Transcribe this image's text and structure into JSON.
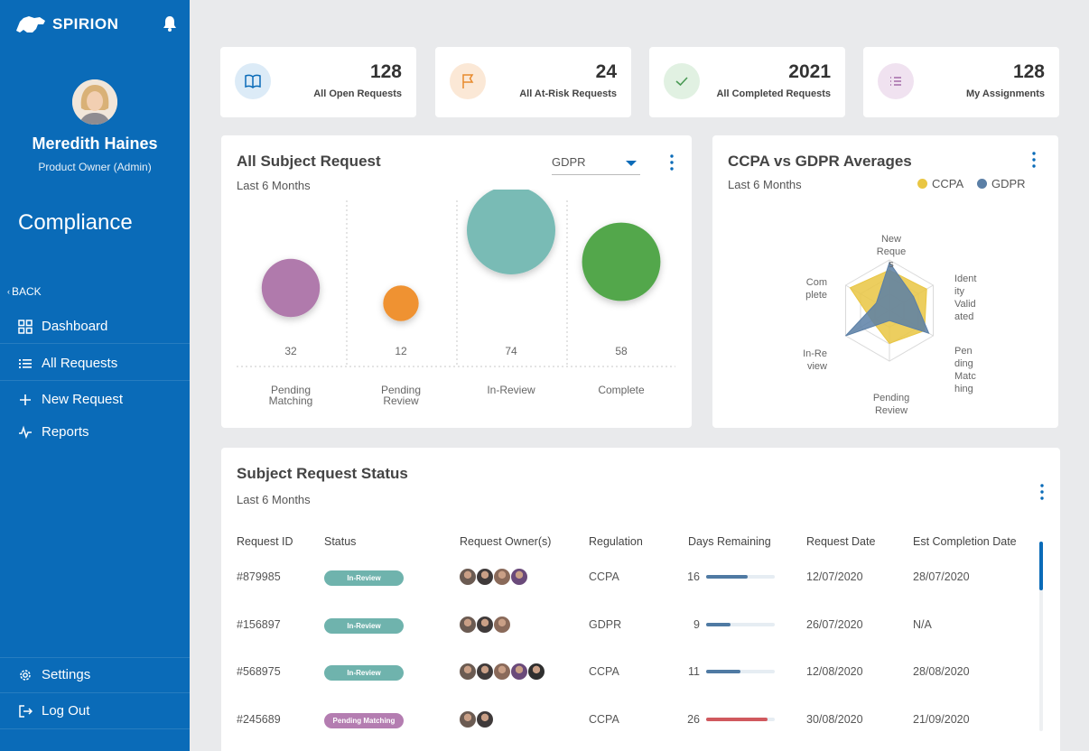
{
  "brand": {
    "name": "SPIRION"
  },
  "user": {
    "name": "Meredith Haines",
    "role": "Product Owner (Admin)"
  },
  "sidebar": {
    "section": "Compliance",
    "back": "BACK",
    "items": [
      {
        "label": "Dashboard",
        "icon": "grid-icon"
      },
      {
        "label": "All Requests",
        "icon": "list-icon"
      },
      {
        "label": "New Request",
        "icon": "plus-icon"
      },
      {
        "label": "Reports",
        "icon": "pulse-icon"
      }
    ],
    "bottom": [
      {
        "label": "Settings",
        "icon": "gear-icon"
      },
      {
        "label": "Log Out",
        "icon": "logout-icon"
      }
    ]
  },
  "stats": [
    {
      "value": "128",
      "label": "All Open Requests",
      "icon": "book-icon",
      "color": "#0a6bb8",
      "bg": "#dcebf7"
    },
    {
      "value": "24",
      "label": "All At-Risk Requests",
      "icon": "flag-icon",
      "color": "#e88a2d",
      "bg": "#fbe8d6"
    },
    {
      "value": "2021",
      "label": "All Completed Requests",
      "icon": "check-icon",
      "color": "#4a9a55",
      "bg": "#e1f1e2"
    },
    {
      "value": "128",
      "label": "My Assignments",
      "icon": "list-icon",
      "color": "#a46aa8",
      "bg": "#f0e2f0"
    }
  ],
  "subject_chart": {
    "title": "All Subject Request",
    "subtitle": "Last 6 Months",
    "filter": "GDPR"
  },
  "radar": {
    "title": "CCPA vs GDPR Averages",
    "subtitle": "Last 6 Months",
    "axis_labels": {
      "new": [
        "New",
        "Reque",
        "s"
      ],
      "identity": [
        "Ident",
        "ity",
        "Valid",
        "ated"
      ],
      "pending_matching": [
        "Pen",
        "ding",
        "Matc",
        "hing"
      ],
      "pending_review": [
        "Pending",
        "Review"
      ],
      "in_review": [
        "In-Re",
        "view"
      ],
      "complete": [
        "Com",
        "plete"
      ]
    }
  },
  "chart_data": [
    {
      "type": "scatter",
      "title": "All Subject Request",
      "subtitle": "Last 6 Months",
      "categories": [
        "Pending Matching",
        "Pending Review",
        "In-Review",
        "Complete"
      ],
      "values": [
        32,
        12,
        74,
        58
      ],
      "colors": [
        "#b07aac",
        "#ef9233",
        "#79bbb5",
        "#52a74c"
      ]
    },
    {
      "type": "radar",
      "title": "CCPA vs GDPR Averages",
      "subtitle": "Last 6 Months",
      "axes": [
        "New Requests",
        "Identity Validated",
        "Pending Matching",
        "Pending Review",
        "In-Review",
        "Complete"
      ],
      "series": [
        {
          "name": "CCPA",
          "color": "#e9c643",
          "values": [
            0.8,
            0.85,
            0.8,
            0.65,
            0.4,
            0.9
          ]
        },
        {
          "name": "GDPR",
          "color": "#5b7fa6",
          "values": [
            0.95,
            0.55,
            0.9,
            0.2,
            1.0,
            0.3
          ]
        }
      ],
      "legend": "top-right"
    }
  ],
  "table": {
    "title": "Subject Request Status",
    "subtitle": "Last 6 Months",
    "headers": [
      "Request ID",
      "Status",
      "Request Owner(s)",
      "Regulation",
      "Days Remaining",
      "Request Date",
      "Est Completion Date"
    ],
    "rows": [
      {
        "id": "#879985",
        "status": "In-Review",
        "status_color": "#6fb3ad",
        "owners": 4,
        "regulation": "CCPA",
        "days": "16",
        "progress": 0.6,
        "bar_color": "#4f7aa3",
        "request_date": "12/07/2020",
        "est": "28/07/2020"
      },
      {
        "id": "#156897",
        "status": "In-Review",
        "status_color": "#6fb3ad",
        "owners": 3,
        "regulation": "GDPR",
        "days": "9",
        "progress": 0.35,
        "bar_color": "#4f7aa3",
        "request_date": "26/07/2020",
        "est": "N/A"
      },
      {
        "id": "#568975",
        "status": "In-Review",
        "status_color": "#6fb3ad",
        "owners": 5,
        "regulation": "CCPA",
        "days": "11",
        "progress": 0.5,
        "bar_color": "#4f7aa3",
        "request_date": "12/08/2020",
        "est": "28/08/2020"
      },
      {
        "id": "#245689",
        "status": "Pending Matching",
        "status_color": "#b47db1",
        "owners": 2,
        "regulation": "CCPA",
        "days": "26",
        "progress": 0.9,
        "bar_color": "#d0595e",
        "request_date": "30/08/2020",
        "est": "21/09/2020"
      }
    ]
  }
}
